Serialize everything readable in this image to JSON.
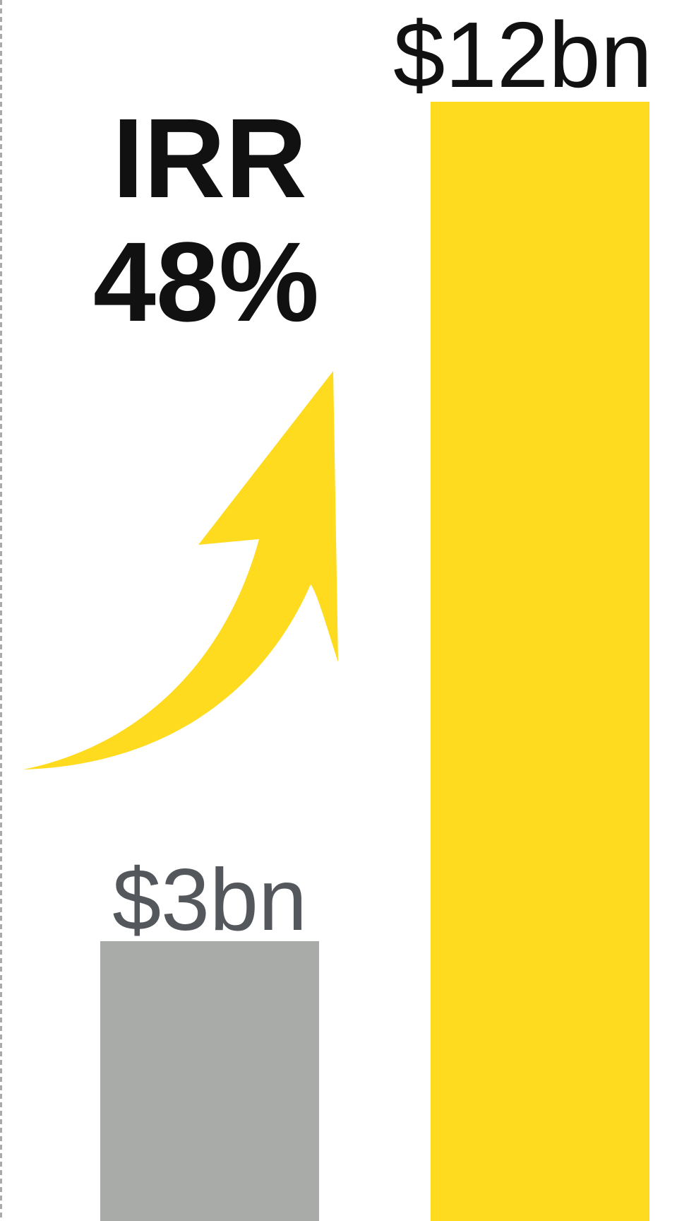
{
  "chart_data": {
    "type": "bar",
    "categories": [
      null,
      null
    ],
    "values": [
      3,
      12
    ],
    "value_labels": [
      "$3bn",
      "$12bn"
    ],
    "colors": [
      "#a9aba9",
      "#fedb1f"
    ],
    "label_colors": [
      "#54575c",
      "#111111"
    ],
    "annotation": {
      "title": "IRR",
      "value": "48%"
    }
  }
}
